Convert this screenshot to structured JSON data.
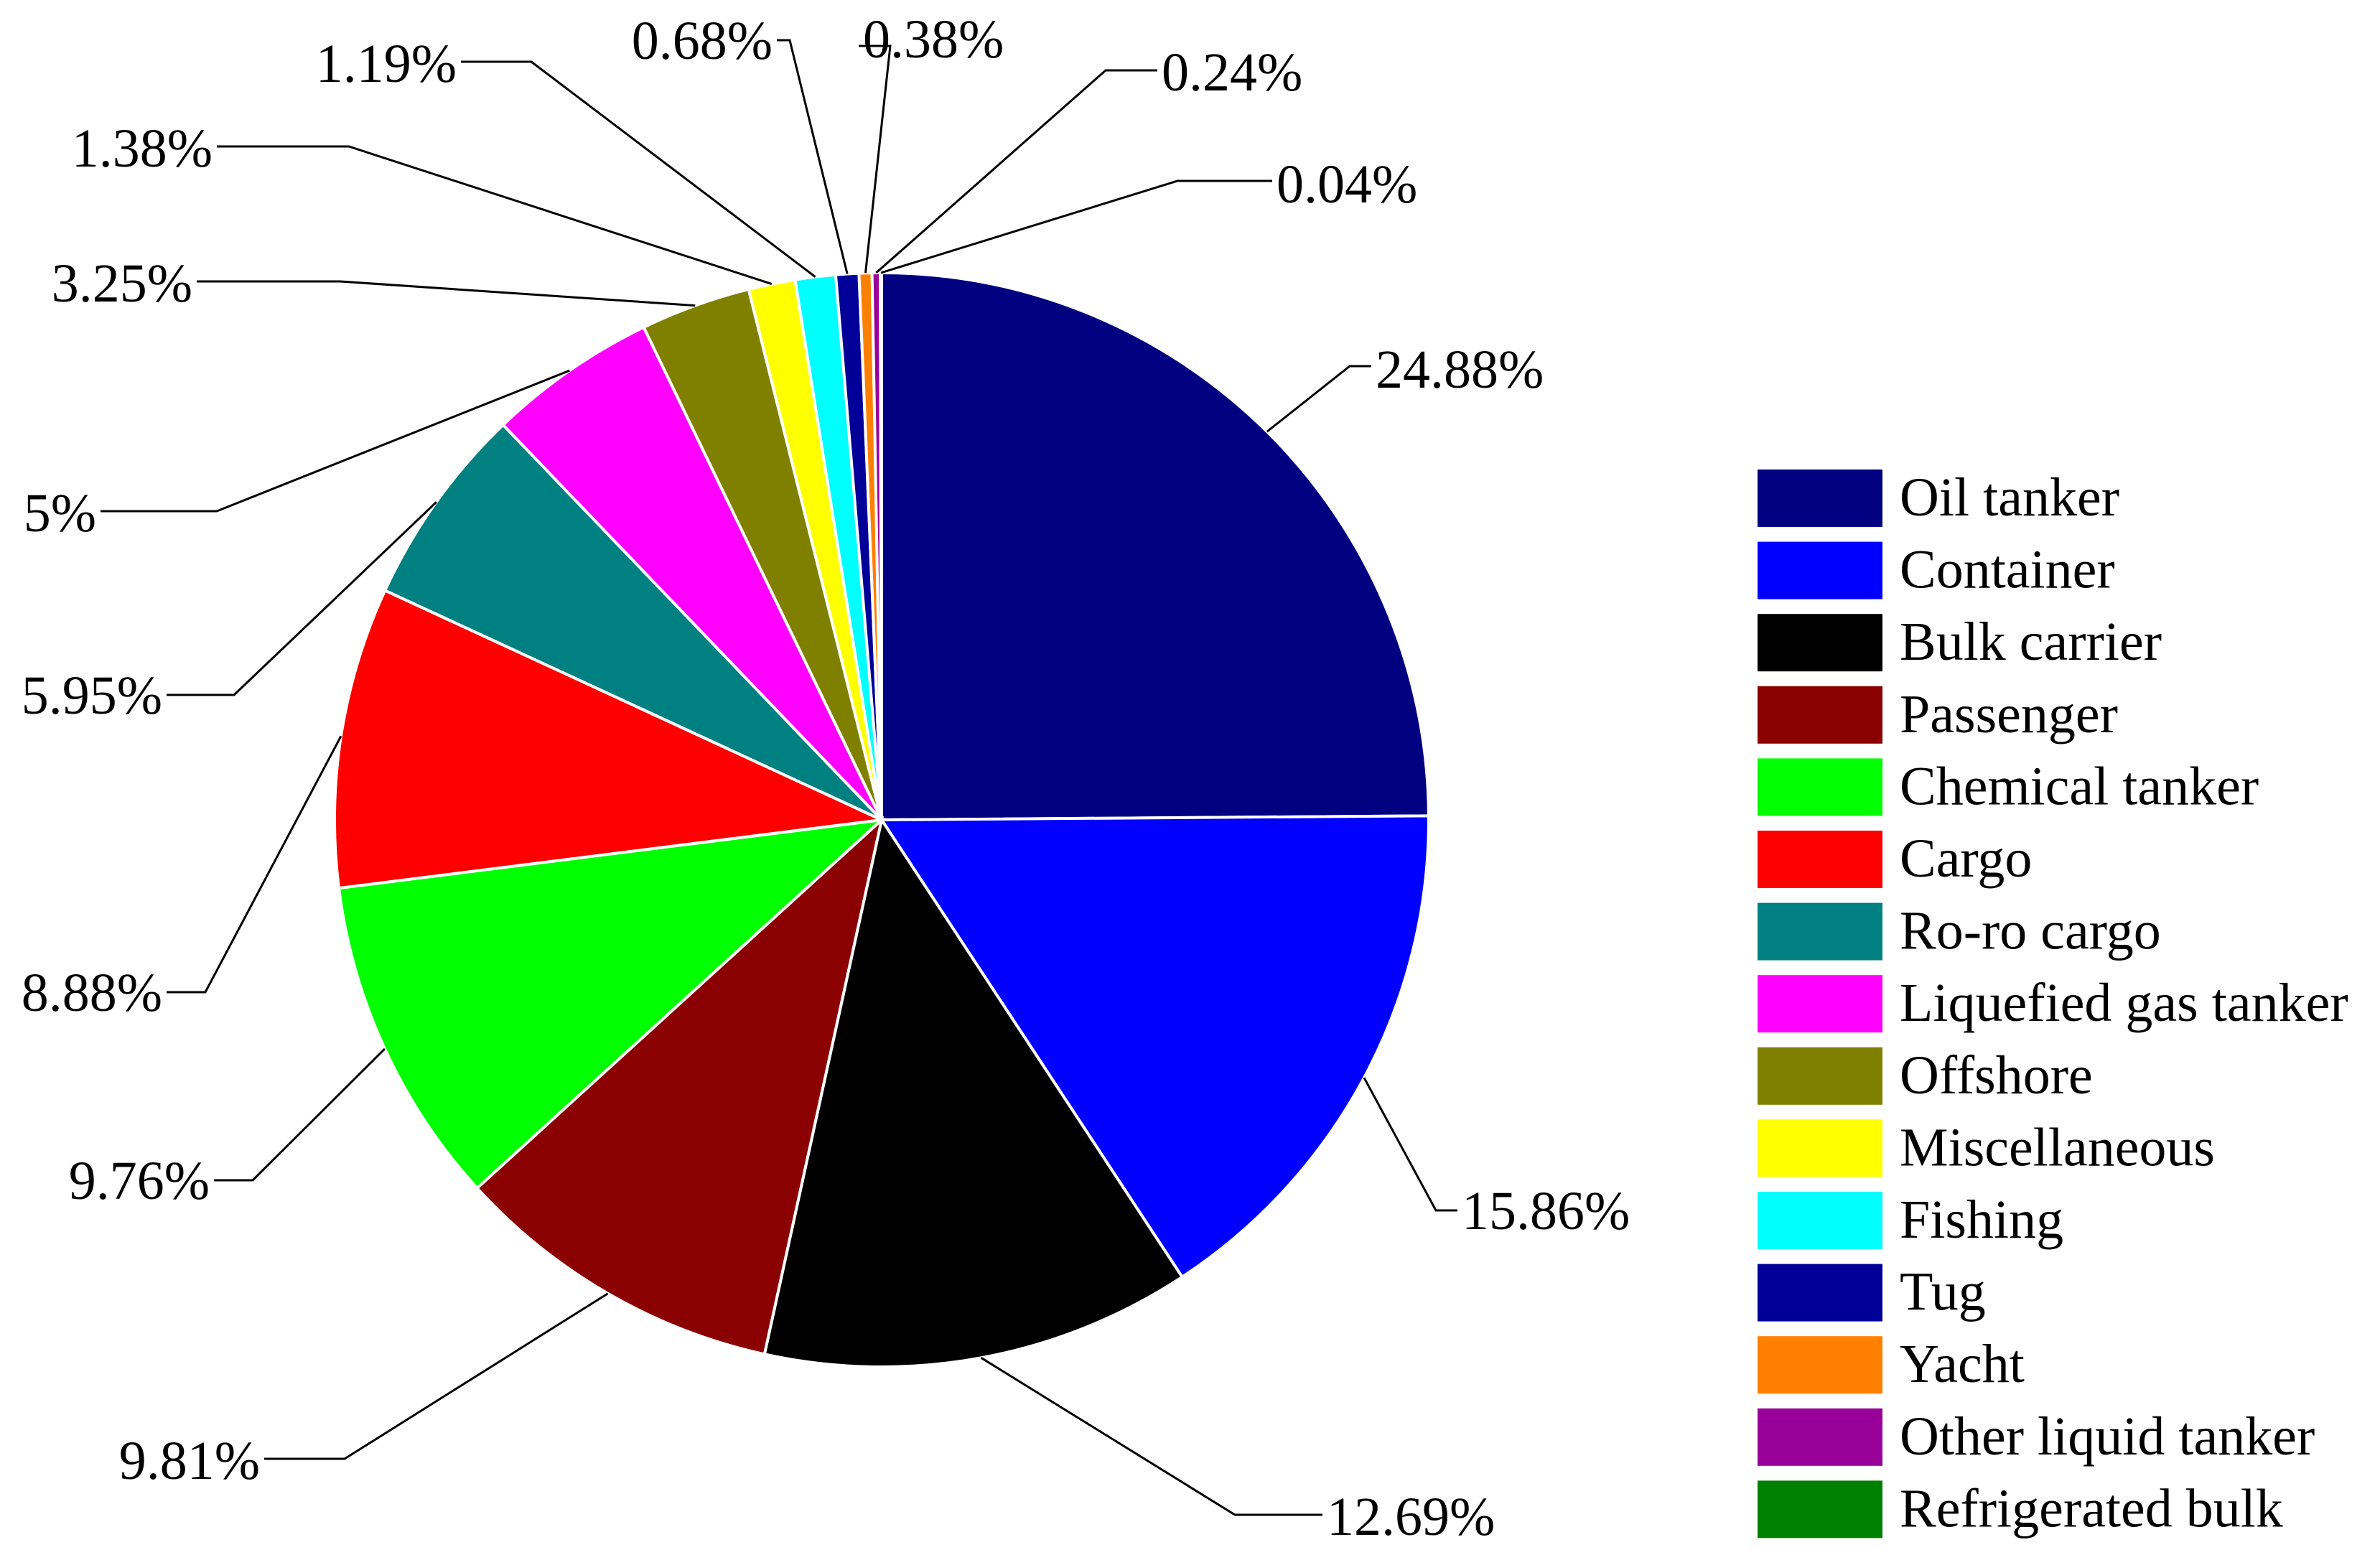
{
  "chart_data": {
    "type": "pie",
    "title": "",
    "start_angle": "12 o'clock",
    "direction": "clockwise",
    "legend_position": "right",
    "slices": [
      {
        "name": "Oil tanker",
        "value": 24.88,
        "label": "24.88%",
        "color": "#000080"
      },
      {
        "name": "Container",
        "value": 15.86,
        "label": "15.86%",
        "color": "#0000FF"
      },
      {
        "name": "Bulk carrier",
        "value": 12.69,
        "label": "12.69%",
        "color": "#000000"
      },
      {
        "name": "Passenger",
        "value": 9.81,
        "label": "9.81%",
        "color": "#8B0000"
      },
      {
        "name": "Chemical tanker",
        "value": 9.76,
        "label": "9.76%",
        "color": "#00FF00"
      },
      {
        "name": "Cargo",
        "value": 8.88,
        "label": "8.88%",
        "color": "#FF0000"
      },
      {
        "name": "Ro-ro cargo",
        "value": 5.95,
        "label": "5.95%",
        "color": "#008080"
      },
      {
        "name": "Liquefied gas tanker",
        "value": 5.0,
        "label": "5%",
        "color": "#FF00FF"
      },
      {
        "name": "Offshore",
        "value": 3.25,
        "label": "3.25%",
        "color": "#808000"
      },
      {
        "name": "Miscellaneous",
        "value": 1.38,
        "label": "1.38%",
        "color": "#FFFF00"
      },
      {
        "name": "Fishing",
        "value": 1.19,
        "label": "1.19%",
        "color": "#00FFFF"
      },
      {
        "name": "Tug",
        "value": 0.68,
        "label": "0.68%",
        "color": "#000099"
      },
      {
        "name": "Yacht",
        "value": 0.38,
        "label": "0.38%",
        "color": "#FF8000"
      },
      {
        "name": "Other liquid tanker",
        "value": 0.24,
        "label": "0.24%",
        "color": "#990099"
      },
      {
        "name": "Refrigerated bulk",
        "value": 0.04,
        "label": "0.04%",
        "color": "#008000"
      }
    ]
  }
}
